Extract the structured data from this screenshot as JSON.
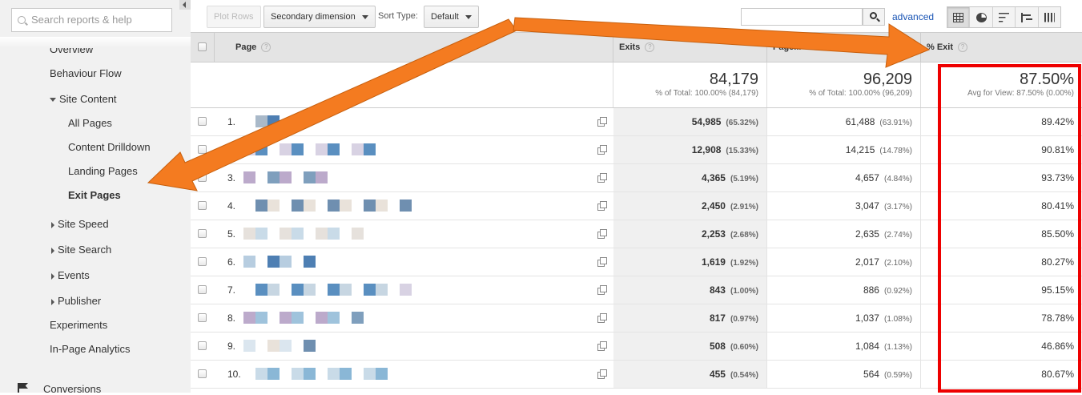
{
  "sidebar": {
    "search_placeholder": "Search reports & help",
    "items": [
      {
        "label": "Overview"
      },
      {
        "label": "Behaviour Flow"
      },
      {
        "label": "Site Content"
      },
      {
        "label": "All Pages"
      },
      {
        "label": "Content Drilldown"
      },
      {
        "label": "Landing Pages"
      },
      {
        "label": "Exit Pages"
      },
      {
        "label": "Site Speed"
      },
      {
        "label": "Site Search"
      },
      {
        "label": "Events"
      },
      {
        "label": "Publisher"
      },
      {
        "label": "Experiments"
      },
      {
        "label": "In-Page Analytics"
      },
      {
        "label": "Conversions"
      }
    ]
  },
  "toolbar": {
    "plot_rows": "Plot Rows",
    "secondary_dimension": "Secondary dimension",
    "sort_type_label": "Sort Type:",
    "sort_type_value": "Default",
    "advanced": "advanced"
  },
  "table": {
    "headers": {
      "page": "Page",
      "exits": "Exits",
      "pageviews": "Page...",
      "pct_exit": "% Exit",
      "help": "?"
    },
    "totals": {
      "exits": "84,179",
      "exits_sub": "% of Total: 100.00% (84,179)",
      "pageviews": "96,209",
      "pageviews_sub": "% of Total: 100.00% (96,209)",
      "pct_exit": "87.50%",
      "pct_exit_sub": "Avg for View: 87.50% (0.00%)"
    },
    "rows": [
      {
        "n": "1.",
        "exits": "54,985",
        "exits_pct": "(65.32%)",
        "pv": "61,488",
        "pv_pct": "(63.91%)",
        "pe": "89.42%"
      },
      {
        "n": "2.",
        "exits": "12,908",
        "exits_pct": "(15.33%)",
        "pv": "14,215",
        "pv_pct": "(14.78%)",
        "pe": "90.81%"
      },
      {
        "n": "3.",
        "exits": "4,365",
        "exits_pct": "(5.19%)",
        "pv": "4,657",
        "pv_pct": "(4.84%)",
        "pe": "93.73%"
      },
      {
        "n": "4.",
        "exits": "2,450",
        "exits_pct": "(2.91%)",
        "pv": "3,047",
        "pv_pct": "(3.17%)",
        "pe": "80.41%"
      },
      {
        "n": "5.",
        "exits": "2,253",
        "exits_pct": "(2.68%)",
        "pv": "2,635",
        "pv_pct": "(2.74%)",
        "pe": "85.50%"
      },
      {
        "n": "6.",
        "exits": "1,619",
        "exits_pct": "(1.92%)",
        "pv": "2,017",
        "pv_pct": "(2.10%)",
        "pe": "80.27%"
      },
      {
        "n": "7.",
        "exits": "843",
        "exits_pct": "(1.00%)",
        "pv": "886",
        "pv_pct": "(0.92%)",
        "pe": "95.15%"
      },
      {
        "n": "8.",
        "exits": "817",
        "exits_pct": "(0.97%)",
        "pv": "1,037",
        "pv_pct": "(1.08%)",
        "pe": "78.78%"
      },
      {
        "n": "9.",
        "exits": "508",
        "exits_pct": "(0.60%)",
        "pv": "1,084",
        "pv_pct": "(1.13%)",
        "pe": "46.86%"
      },
      {
        "n": "10.",
        "exits": "455",
        "exits_pct": "(0.54%)",
        "pv": "564",
        "pv_pct": "(0.59%)",
        "pe": "80.67%"
      }
    ]
  },
  "colors": {
    "arrow": "#f47b20",
    "highlight": "#e00000",
    "link": "#1a55b5"
  }
}
